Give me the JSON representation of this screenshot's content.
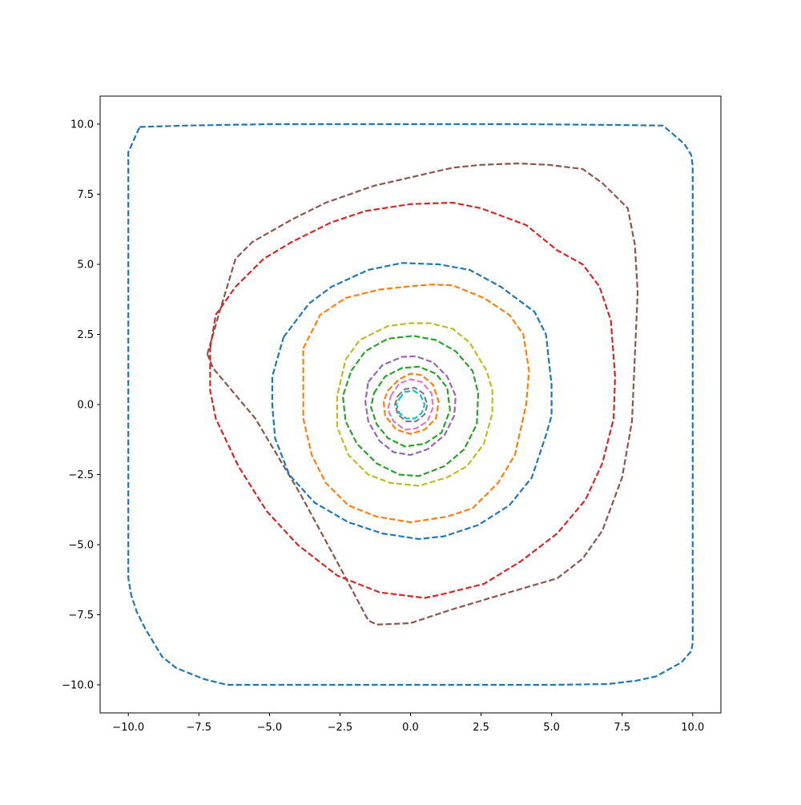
{
  "chart_data": {
    "type": "line",
    "title": "",
    "xlabel": "",
    "ylabel": "",
    "xlim": [
      -11,
      11
    ],
    "ylim": [
      -11,
      11
    ],
    "grid": false,
    "legend": "none",
    "line_style": "dashed",
    "x_ticks": [
      -10,
      -7.5,
      -5,
      -2.5,
      0,
      2.5,
      5,
      7.5,
      10
    ],
    "x_tick_labels": [
      "−10.0",
      "−7.5",
      "−5.0",
      "−2.5",
      "0.0",
      "2.5",
      "5.0",
      "7.5",
      "10.0"
    ],
    "y_ticks": [
      10,
      7.5,
      5,
      2.5,
      0,
      -2.5,
      -5,
      -7.5,
      -10
    ],
    "y_tick_labels": [
      "10.0",
      "7.5",
      "5.0",
      "2.5",
      "0.0",
      "−2.5",
      "−5.0",
      "−7.5",
      "−10.0"
    ],
    "series": [
      {
        "color": "#1f77b4",
        "points": [
          [
            -9.6,
            9.9
          ],
          [
            -8,
            9.95
          ],
          [
            -5,
            10
          ],
          [
            0,
            10
          ],
          [
            4,
            10
          ],
          [
            7.5,
            9.97
          ],
          [
            8.95,
            9.95
          ],
          [
            9.7,
            9.3
          ],
          [
            9.95,
            8.9
          ],
          [
            10,
            8.5
          ],
          [
            10,
            -8.5
          ],
          [
            9.95,
            -8.8
          ],
          [
            9.6,
            -9.2
          ],
          [
            8.7,
            -9.7
          ],
          [
            8,
            -9.85
          ],
          [
            7,
            -9.97
          ],
          [
            5,
            -10
          ],
          [
            0,
            -10
          ],
          [
            -6.5,
            -10
          ],
          [
            -7.3,
            -9.8
          ],
          [
            -8.3,
            -9.4
          ],
          [
            -8.8,
            -9
          ],
          [
            -9.4,
            -8
          ],
          [
            -9.7,
            -7.4
          ],
          [
            -9.9,
            -6.8
          ],
          [
            -10,
            -6.2
          ],
          [
            -10,
            9
          ],
          [
            -9.6,
            9.9
          ]
        ]
      },
      {
        "color": "#8c564b",
        "points": [
          [
            -7.2,
            1.8
          ],
          [
            -6.8,
            3.2
          ],
          [
            -6.2,
            5.2
          ],
          [
            -5.6,
            5.8
          ],
          [
            -4.2,
            6.6
          ],
          [
            -3,
            7.2
          ],
          [
            -1.3,
            7.8
          ],
          [
            0,
            8.1
          ],
          [
            1.5,
            8.45
          ],
          [
            2.5,
            8.55
          ],
          [
            3.8,
            8.6
          ],
          [
            4.9,
            8.55
          ],
          [
            6.1,
            8.4
          ],
          [
            6.8,
            7.9
          ],
          [
            7.7,
            7.0
          ],
          [
            7.95,
            5.7
          ],
          [
            8.05,
            4.0
          ],
          [
            7.85,
            -0.6
          ],
          [
            7.5,
            -2.6
          ],
          [
            6.8,
            -4.5
          ],
          [
            6.1,
            -5.5
          ],
          [
            5.2,
            -6.2
          ],
          [
            3.5,
            -6.7
          ],
          [
            1.5,
            -7.3
          ],
          [
            0,
            -7.8
          ],
          [
            -1.2,
            -7.85
          ],
          [
            -1.5,
            -7.7
          ],
          [
            -2.5,
            -5.8
          ],
          [
            -3.9,
            -3.2
          ],
          [
            -5.5,
            -0.5
          ],
          [
            -6.5,
            0.7
          ],
          [
            -7.0,
            1.3
          ],
          [
            -7.2,
            1.8
          ]
        ]
      },
      {
        "color": "#d62728",
        "points": [
          [
            -7.1,
            2.0
          ],
          [
            -6.9,
            3.2
          ],
          [
            -6.2,
            4.2
          ],
          [
            -5.2,
            5.2
          ],
          [
            -4.2,
            5.8
          ],
          [
            -2.8,
            6.5
          ],
          [
            -1.6,
            6.9
          ],
          [
            0,
            7.15
          ],
          [
            1.5,
            7.2
          ],
          [
            2.5,
            7.0
          ],
          [
            4.1,
            6.4
          ],
          [
            5.2,
            5.5
          ],
          [
            6.1,
            5.0
          ],
          [
            6.7,
            4.2
          ],
          [
            7.1,
            3.0
          ],
          [
            7.25,
            1.0
          ],
          [
            7.2,
            -0.5
          ],
          [
            6.8,
            -2.1
          ],
          [
            6.2,
            -3.4
          ],
          [
            5.2,
            -4.6
          ],
          [
            3.9,
            -5.6
          ],
          [
            2.6,
            -6.4
          ],
          [
            1,
            -6.8
          ],
          [
            0.5,
            -6.9
          ],
          [
            -1.1,
            -6.7
          ],
          [
            -2.6,
            -6.1
          ],
          [
            -4.0,
            -5.0
          ],
          [
            -5.1,
            -3.8
          ],
          [
            -6.1,
            -2.2
          ],
          [
            -6.9,
            -0.5
          ],
          [
            -7.1,
            0.5
          ],
          [
            -7.1,
            2.0
          ]
        ]
      },
      {
        "color": "#1f77b4",
        "points": [
          [
            -4.5,
            2.4
          ],
          [
            -3.6,
            3.6
          ],
          [
            -2.8,
            4.2
          ],
          [
            -1.5,
            4.8
          ],
          [
            -0.3,
            5.05
          ],
          [
            1,
            5.0
          ],
          [
            2.1,
            4.8
          ],
          [
            3.2,
            4.2
          ],
          [
            4.4,
            3.3
          ],
          [
            4.8,
            2.5
          ],
          [
            5.0,
            0.7
          ],
          [
            5.0,
            -0.4
          ],
          [
            4.8,
            -1.1
          ],
          [
            4.3,
            -2.6
          ],
          [
            3.5,
            -3.6
          ],
          [
            2.4,
            -4.3
          ],
          [
            1.2,
            -4.7
          ],
          [
            0.3,
            -4.8
          ],
          [
            -1.0,
            -4.6
          ],
          [
            -2.2,
            -4.2
          ],
          [
            -3.4,
            -3.5
          ],
          [
            -4.3,
            -2.5
          ],
          [
            -4.8,
            -1.2
          ],
          [
            -4.9,
            0
          ],
          [
            -4.9,
            1.0
          ],
          [
            -4.5,
            2.4
          ]
        ]
      },
      {
        "color": "#ff7f0e",
        "points": [
          [
            -3.8,
            2.0
          ],
          [
            -3.2,
            3.2
          ],
          [
            -2.3,
            3.8
          ],
          [
            -1.1,
            4.1
          ],
          [
            0,
            4.22
          ],
          [
            0.8,
            4.28
          ],
          [
            1.5,
            4.25
          ],
          [
            2.6,
            3.8
          ],
          [
            3.5,
            3.2
          ],
          [
            4.0,
            2.5
          ],
          [
            4.2,
            1.2
          ],
          [
            4.1,
            0
          ],
          [
            3.7,
            -1.8
          ],
          [
            3.1,
            -2.8
          ],
          [
            2.2,
            -3.7
          ],
          [
            1.3,
            -4.0
          ],
          [
            0,
            -4.2
          ],
          [
            -1.2,
            -4.0
          ],
          [
            -2.2,
            -3.6
          ],
          [
            -3.0,
            -2.8
          ],
          [
            -3.5,
            -1.8
          ],
          [
            -3.8,
            -0.5
          ],
          [
            -3.8,
            1.0
          ],
          [
            -3.8,
            2.0
          ]
        ]
      },
      {
        "color": "#bcbd22",
        "points": [
          [
            -2.3,
            1.6
          ],
          [
            -1.8,
            2.3
          ],
          [
            -0.8,
            2.8
          ],
          [
            0,
            2.9
          ],
          [
            0.7,
            2.9
          ],
          [
            1.5,
            2.7
          ],
          [
            2.1,
            2.2
          ],
          [
            2.7,
            1.2
          ],
          [
            2.9,
            0.5
          ],
          [
            2.9,
            -0.3
          ],
          [
            2.6,
            -1.4
          ],
          [
            2.0,
            -2.2
          ],
          [
            1.3,
            -2.6
          ],
          [
            0.3,
            -2.9
          ],
          [
            -0.7,
            -2.8
          ],
          [
            -1.5,
            -2.5
          ],
          [
            -2.2,
            -1.8
          ],
          [
            -2.6,
            -0.8
          ],
          [
            -2.6,
            0.3
          ],
          [
            -2.3,
            1.6
          ]
        ]
      },
      {
        "color": "#2ca02c",
        "points": [
          [
            -2.1,
            1.2
          ],
          [
            -1.6,
            1.9
          ],
          [
            -0.8,
            2.35
          ],
          [
            0.1,
            2.45
          ],
          [
            0.9,
            2.3
          ],
          [
            1.6,
            1.9
          ],
          [
            2.2,
            1.2
          ],
          [
            2.4,
            0.4
          ],
          [
            2.35,
            -0.7
          ],
          [
            1.9,
            -1.6
          ],
          [
            1.2,
            -2.2
          ],
          [
            0.3,
            -2.55
          ],
          [
            -0.4,
            -2.5
          ],
          [
            -1.2,
            -2.1
          ],
          [
            -1.9,
            -1.4
          ],
          [
            -2.3,
            -0.6
          ],
          [
            -2.4,
            0.3
          ],
          [
            -2.1,
            1.2
          ]
        ]
      },
      {
        "color": "#9467bd",
        "points": [
          [
            -1.5,
            0.8
          ],
          [
            -1.0,
            1.4
          ],
          [
            -0.3,
            1.7
          ],
          [
            0.2,
            1.72
          ],
          [
            0.8,
            1.5
          ],
          [
            1.3,
            1.0
          ],
          [
            1.6,
            0.3
          ],
          [
            1.55,
            -0.4
          ],
          [
            1.2,
            -1.1
          ],
          [
            0.6,
            -1.6
          ],
          [
            0,
            -1.8
          ],
          [
            -0.6,
            -1.7
          ],
          [
            -1.1,
            -1.3
          ],
          [
            -1.5,
            -0.6
          ],
          [
            -1.6,
            0.1
          ],
          [
            -1.5,
            0.8
          ]
        ]
      },
      {
        "color": "#2ca02c",
        "points": [
          [
            -1.3,
            0.4
          ],
          [
            -0.9,
            1.0
          ],
          [
            -0.3,
            1.3
          ],
          [
            0.3,
            1.35
          ],
          [
            0.9,
            1.1
          ],
          [
            1.3,
            0.6
          ],
          [
            1.4,
            -0.2
          ],
          [
            1.1,
            -1.0
          ],
          [
            0.5,
            -1.4
          ],
          [
            -0.2,
            -1.5
          ],
          [
            -0.8,
            -1.2
          ],
          [
            -1.2,
            -0.7
          ],
          [
            -1.4,
            -0.1
          ],
          [
            -1.3,
            0.4
          ]
        ]
      },
      {
        "color": "#ff7f0e",
        "points": [
          [
            -0.8,
            0.5
          ],
          [
            -0.4,
            0.9
          ],
          [
            0,
            1.1
          ],
          [
            0.4,
            1.05
          ],
          [
            0.8,
            0.7
          ],
          [
            1.0,
            0.1
          ],
          [
            0.9,
            -0.5
          ],
          [
            0.5,
            -0.9
          ],
          [
            0,
            -1.05
          ],
          [
            -0.5,
            -0.9
          ],
          [
            -0.9,
            -0.4
          ],
          [
            -0.95,
            0.1
          ],
          [
            -0.8,
            0.5
          ]
        ]
      },
      {
        "color": "#e377c2",
        "points": [
          [
            -0.7,
            0.3
          ],
          [
            -0.4,
            0.75
          ],
          [
            0,
            0.9
          ],
          [
            0.4,
            0.8
          ],
          [
            0.75,
            0.4
          ],
          [
            0.8,
            -0.1
          ],
          [
            0.6,
            -0.6
          ],
          [
            0.2,
            -0.85
          ],
          [
            -0.2,
            -0.9
          ],
          [
            -0.6,
            -0.6
          ],
          [
            -0.8,
            -0.2
          ],
          [
            -0.7,
            0.3
          ]
        ]
      },
      {
        "color": "#7f7f7f",
        "points": [
          [
            -0.45,
            0.3
          ],
          [
            -0.2,
            0.55
          ],
          [
            0.15,
            0.6
          ],
          [
            0.45,
            0.4
          ],
          [
            0.6,
            0
          ],
          [
            0.5,
            -0.35
          ],
          [
            0.2,
            -0.6
          ],
          [
            -0.15,
            -0.6
          ],
          [
            -0.45,
            -0.35
          ],
          [
            -0.55,
            0
          ],
          [
            -0.45,
            0.3
          ]
        ]
      },
      {
        "color": "#17becf",
        "points": [
          [
            -0.4,
            0.2
          ],
          [
            -0.2,
            0.45
          ],
          [
            0.1,
            0.5
          ],
          [
            0.35,
            0.35
          ],
          [
            0.5,
            0
          ],
          [
            0.4,
            -0.3
          ],
          [
            0.15,
            -0.5
          ],
          [
            -0.15,
            -0.5
          ],
          [
            -0.4,
            -0.3
          ],
          [
            -0.5,
            0
          ],
          [
            -0.4,
            0.2
          ]
        ]
      }
    ]
  }
}
